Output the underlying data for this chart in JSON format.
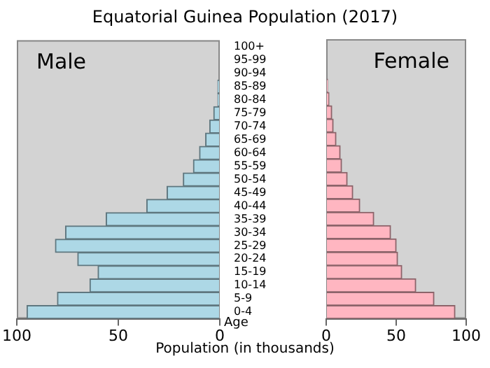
{
  "chart_data": [
    {
      "type": "bar",
      "title": "Equatorial Guinea Population (2017)",
      "xlabel": "Population (in thousands)",
      "ylabel": "Age",
      "orientation": "horizontal",
      "categories": [
        "100+",
        "95-99",
        "90-94",
        "85-89",
        "80-84",
        "75-79",
        "70-74",
        "65-69",
        "60-64",
        "55-59",
        "50-54",
        "45-49",
        "40-44",
        "35-39",
        "30-34",
        "25-29",
        "20-24",
        "15-19",
        "10-14",
        "5-9",
        "0-4"
      ],
      "series": [
        {
          "name": "Male",
          "color": "#add8e6",
          "values": [
            0,
            0,
            0,
            1,
            1,
            3,
            5,
            7,
            10,
            13,
            18,
            26,
            36,
            56,
            76,
            81,
            70,
            60,
            64,
            80,
            95
          ]
        }
      ],
      "xlim": [
        100,
        0
      ],
      "xticks": [
        100,
        50,
        0
      ],
      "grid": false
    },
    {
      "type": "bar",
      "orientation": "horizontal",
      "categories": [
        null,
        null,
        null,
        null,
        null,
        null,
        null,
        null,
        null,
        null,
        null,
        null,
        null,
        null,
        null,
        null,
        null,
        null,
        null,
        null,
        null
      ],
      "series": [
        {
          "name": "Female",
          "color": "#ffb6c1",
          "values": [
            0,
            0,
            0,
            1,
            2,
            4,
            5,
            7,
            10,
            11,
            15,
            19,
            24,
            34,
            46,
            50,
            51,
            54,
            64,
            77,
            92
          ]
        }
      ],
      "xlim": [
        0,
        100
      ],
      "xticks": [
        0,
        50,
        100
      ],
      "grid": false,
      "tick_labels": "x"
    }
  ]
}
